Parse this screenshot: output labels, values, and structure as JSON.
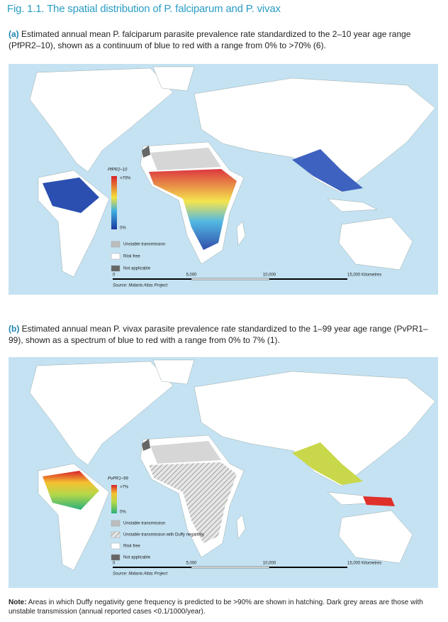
{
  "figure_title": "Fig. 1.1. The spatial distribution of P. falciparum and P. vivax",
  "panels": [
    {
      "caption_label": "(a)",
      "caption_text": "Estimated annual mean P. falciparum parasite prevalence rate standardized to the 2–10 year age range (PfPR2–10), shown as a continuum of blue to red with a range from 0% to >70% (6).",
      "legend": {
        "title": "PfPR2–10",
        "max_label": ">70%",
        "min_label": "0%",
        "items": [
          "Unstable transmission",
          "Risk free",
          "Not applicable"
        ]
      },
      "scale": [
        "0",
        "5,000",
        "10,000",
        "15,000 Kilometres"
      ],
      "source": "Source: Malaria Atlas Project"
    },
    {
      "caption_label": "(b)",
      "caption_text": "Estimated annual mean P. vivax parasite prevalence rate standardized to the 1–99 year age range (PvPR1–99), shown as a spectrum of blue to red with a range from 0% to 7% (1).",
      "legend": {
        "title": "PvPR1–99",
        "max_label": ">7%",
        "min_label": "0%",
        "items": [
          "Unstable transmission",
          "Unstable transmission with Duffy negativity",
          "Risk free",
          "Not applicable"
        ]
      },
      "scale": [
        "0",
        "5,000",
        "10,000",
        "15,000 Kilometres"
      ],
      "source": "Source: Malaria Atlas Project"
    }
  ],
  "note": {
    "label": "Note:",
    "text": "Areas in which Duffy negativity gene frequency is predicted to be >90% are shown in hatching. Dark grey areas are those with unstable transmission (annual reported cases <0.1/1000/year)."
  }
}
